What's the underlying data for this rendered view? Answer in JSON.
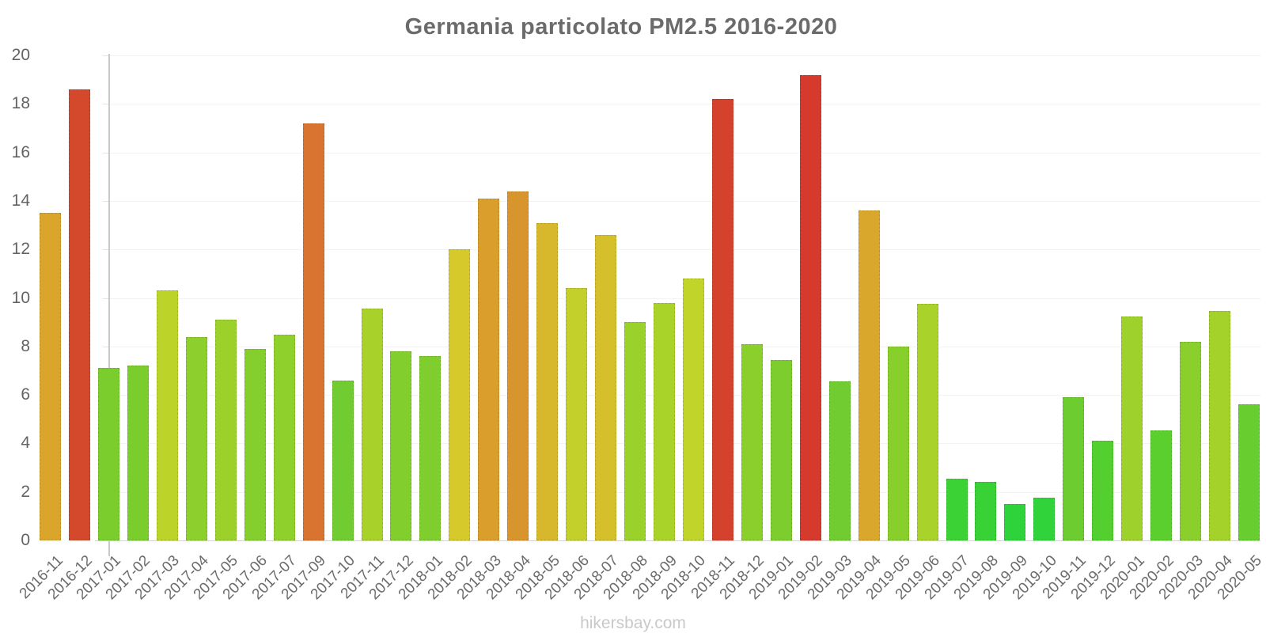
{
  "title": "Germania particolato PM2.5 2016-2020",
  "watermark": "hikersbay.com",
  "y_axis": {
    "min": 0,
    "max": 20,
    "tick_step": 2,
    "tick_labels": [
      "0",
      "2",
      "4",
      "6",
      "8",
      "10",
      "12",
      "14",
      "16",
      "18",
      "20"
    ]
  },
  "chart_data": {
    "type": "bar",
    "title": "Germania particolato PM2.5 2016-2020",
    "xlabel": "",
    "ylabel": "",
    "ylim": [
      0,
      20
    ],
    "grid": "horizontal-faint",
    "legend": "none",
    "categories": [
      "2016-11",
      "2016-12",
      "2017-01",
      "2017-02",
      "2017-03",
      "2017-04",
      "2017-05",
      "2017-06",
      "2017-07",
      "2017-09",
      "2017-10",
      "2017-11",
      "2017-12",
      "2018-01",
      "2018-02",
      "2018-03",
      "2018-04",
      "2018-05",
      "2018-06",
      "2018-07",
      "2018-08",
      "2018-09",
      "2018-10",
      "2018-11",
      "2018-12",
      "2019-01",
      "2019-02",
      "2019-03",
      "2019-04",
      "2019-05",
      "2019-06",
      "2019-07",
      "2019-08",
      "2019-09",
      "2019-10",
      "2019-11",
      "2019-12",
      "2020-01",
      "2020-02",
      "2020-03",
      "2020-04",
      "2020-05"
    ],
    "values": [
      13.5,
      18.6,
      7.1,
      7.2,
      10.3,
      8.4,
      9.1,
      7.9,
      8.5,
      17.2,
      6.6,
      9.55,
      7.8,
      7.6,
      12.0,
      14.1,
      14.4,
      13.1,
      10.4,
      12.6,
      9.0,
      9.8,
      10.8,
      18.2,
      8.1,
      7.45,
      19.2,
      6.55,
      13.6,
      8.0,
      9.75,
      2.55,
      2.4,
      1.5,
      1.75,
      5.9,
      4.1,
      9.25,
      4.55,
      8.2,
      9.45,
      5.6
    ],
    "colors": [
      "#D9A52B",
      "#D4482B",
      "#7BCD2E",
      "#7BCD2E",
      "#BCD429",
      "#8DCF2C",
      "#9CD12B",
      "#84CE2D",
      "#8FD02C",
      "#D8742F",
      "#71CC31",
      "#A8D22A",
      "#82CE2D",
      "#80CD2E",
      "#D5C92B",
      "#D99E2C",
      "#D9952D",
      "#D7B82C",
      "#C3CF2A",
      "#D5C02B",
      "#9AD12B",
      "#AAD32A",
      "#C0D429",
      "#D4412C",
      "#8ACF2C",
      "#7DCD2E",
      "#D63A2D",
      "#70CC31",
      "#D9A72C",
      "#88CF2C",
      "#A9D22A",
      "#3BD235",
      "#38D236",
      "#2ED33C",
      "#31D33A",
      "#6DCC30",
      "#53D02F",
      "#9ED12B",
      "#5ACF2E",
      "#8BCF2C",
      "#A4D22A",
      "#68CD2F"
    ]
  }
}
